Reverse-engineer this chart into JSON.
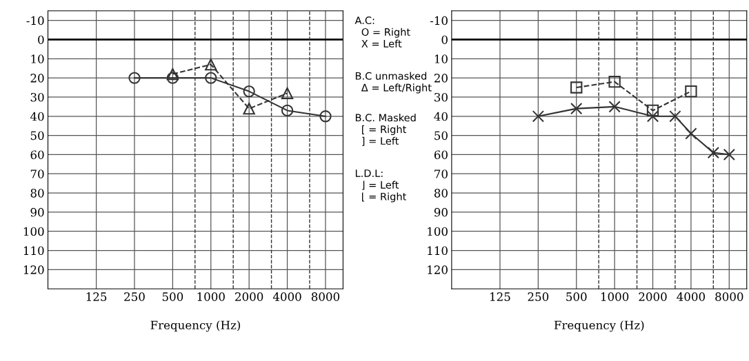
{
  "chart_data": [
    {
      "type": "line",
      "xlabel": "Frequency (Hz)",
      "log": "x",
      "xlim": [
        52,
        11000
      ],
      "xticks": [
        125,
        250,
        500,
        1000,
        2000,
        4000,
        8000
      ],
      "ylim": [
        130,
        -15
      ],
      "yticks": [
        -10,
        0,
        10,
        20,
        30,
        40,
        50,
        60,
        70,
        80,
        90,
        100,
        110,
        120
      ],
      "grid": true,
      "ref_lines": [
        {
          "axis": "y",
          "value": 0,
          "color": "#000000",
          "line_style": "solid"
        },
        {
          "axis": "x",
          "value": 750,
          "color": "#333333",
          "line_style": "dashed"
        },
        {
          "axis": "x",
          "value": 1500,
          "color": "#333333",
          "line_style": "dashed"
        },
        {
          "axis": "x",
          "value": 3000,
          "color": "#333333",
          "line_style": "dashed"
        },
        {
          "axis": "x",
          "value": 6000,
          "color": "#333333",
          "line_style": "dashed"
        }
      ],
      "series": [
        {
          "color": "#333333",
          "marker": "circle",
          "line_style": "solid",
          "x": [
            250,
            500,
            1000,
            2000,
            4000,
            8000
          ],
          "values": [
            20,
            20,
            20,
            27,
            37,
            40
          ]
        },
        {
          "color": "#333333",
          "marker": "triangle",
          "line_style": "dashed",
          "x": [
            500,
            1000,
            2000,
            4000
          ],
          "values": [
            18,
            13,
            36,
            28
          ]
        }
      ],
      "annotations": [
        "A.C:\n  O = Right\n  X = Left",
        "B.C unmasked\n  Δ = Left/Right",
        "B.C. Masked\n  [ = Right\n  ] = Left",
        "L.D.L:\n  ⌋ = Left\n  ⌊ = Right"
      ]
    },
    {
      "type": "line",
      "xlabel": "Frequency (Hz)",
      "log": "x",
      "xlim": [
        52,
        11000
      ],
      "xticks": [
        125,
        250,
        500,
        1000,
        2000,
        4000,
        8000
      ],
      "ylim": [
        130,
        -15
      ],
      "yticks": [
        -10,
        0,
        10,
        20,
        30,
        40,
        50,
        60,
        70,
        80,
        90,
        100,
        110,
        120
      ],
      "grid": true,
      "ref_lines": [
        {
          "axis": "y",
          "value": 0,
          "color": "#000000",
          "line_style": "solid"
        },
        {
          "axis": "x",
          "value": 750,
          "color": "#333333",
          "line_style": "dashed"
        },
        {
          "axis": "x",
          "value": 1500,
          "color": "#333333",
          "line_style": "dashed"
        },
        {
          "axis": "x",
          "value": 3000,
          "color": "#333333",
          "line_style": "dashed"
        },
        {
          "axis": "x",
          "value": 6000,
          "color": "#333333",
          "line_style": "dashed"
        }
      ],
      "series": [
        {
          "color": "#333333",
          "marker": "cross",
          "line_style": "solid",
          "x": [
            250,
            500,
            1000,
            2000,
            3000,
            4000,
            6000,
            8000
          ],
          "values": [
            40,
            36,
            35,
            40,
            40,
            49,
            59,
            60
          ]
        },
        {
          "color": "#333333",
          "marker": "square",
          "line_style": "dashed",
          "x": [
            500,
            1000,
            2000,
            4000
          ],
          "values": [
            25,
            22,
            37,
            27
          ]
        }
      ]
    }
  ]
}
